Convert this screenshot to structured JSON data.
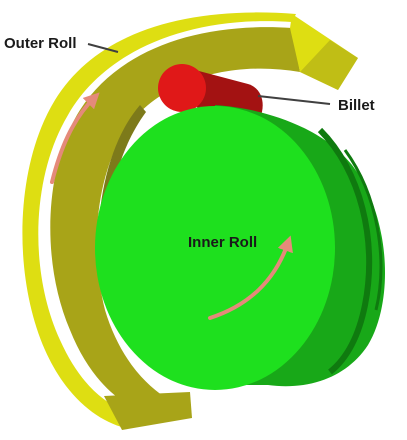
{
  "labels": {
    "outer_roll": "Outer Roll",
    "billet": "Billet",
    "inner_roll": "Inner Roll"
  },
  "colors": {
    "outer_roll_face": "#dede12",
    "outer_roll_side": "#a8a418",
    "outer_roll_shadow": "#7d7a1a",
    "billet_front": "#e01818",
    "billet_body": "#a31212",
    "inner_roll_face": "#1ee01e",
    "inner_roll_side": "#18a818",
    "inner_roll_dark": "#0f7a0f",
    "arrow": "#e58a7a",
    "leader_line": "#404040"
  },
  "icons": [
    "rotation-arrow-outer",
    "rotation-arrow-inner"
  ]
}
